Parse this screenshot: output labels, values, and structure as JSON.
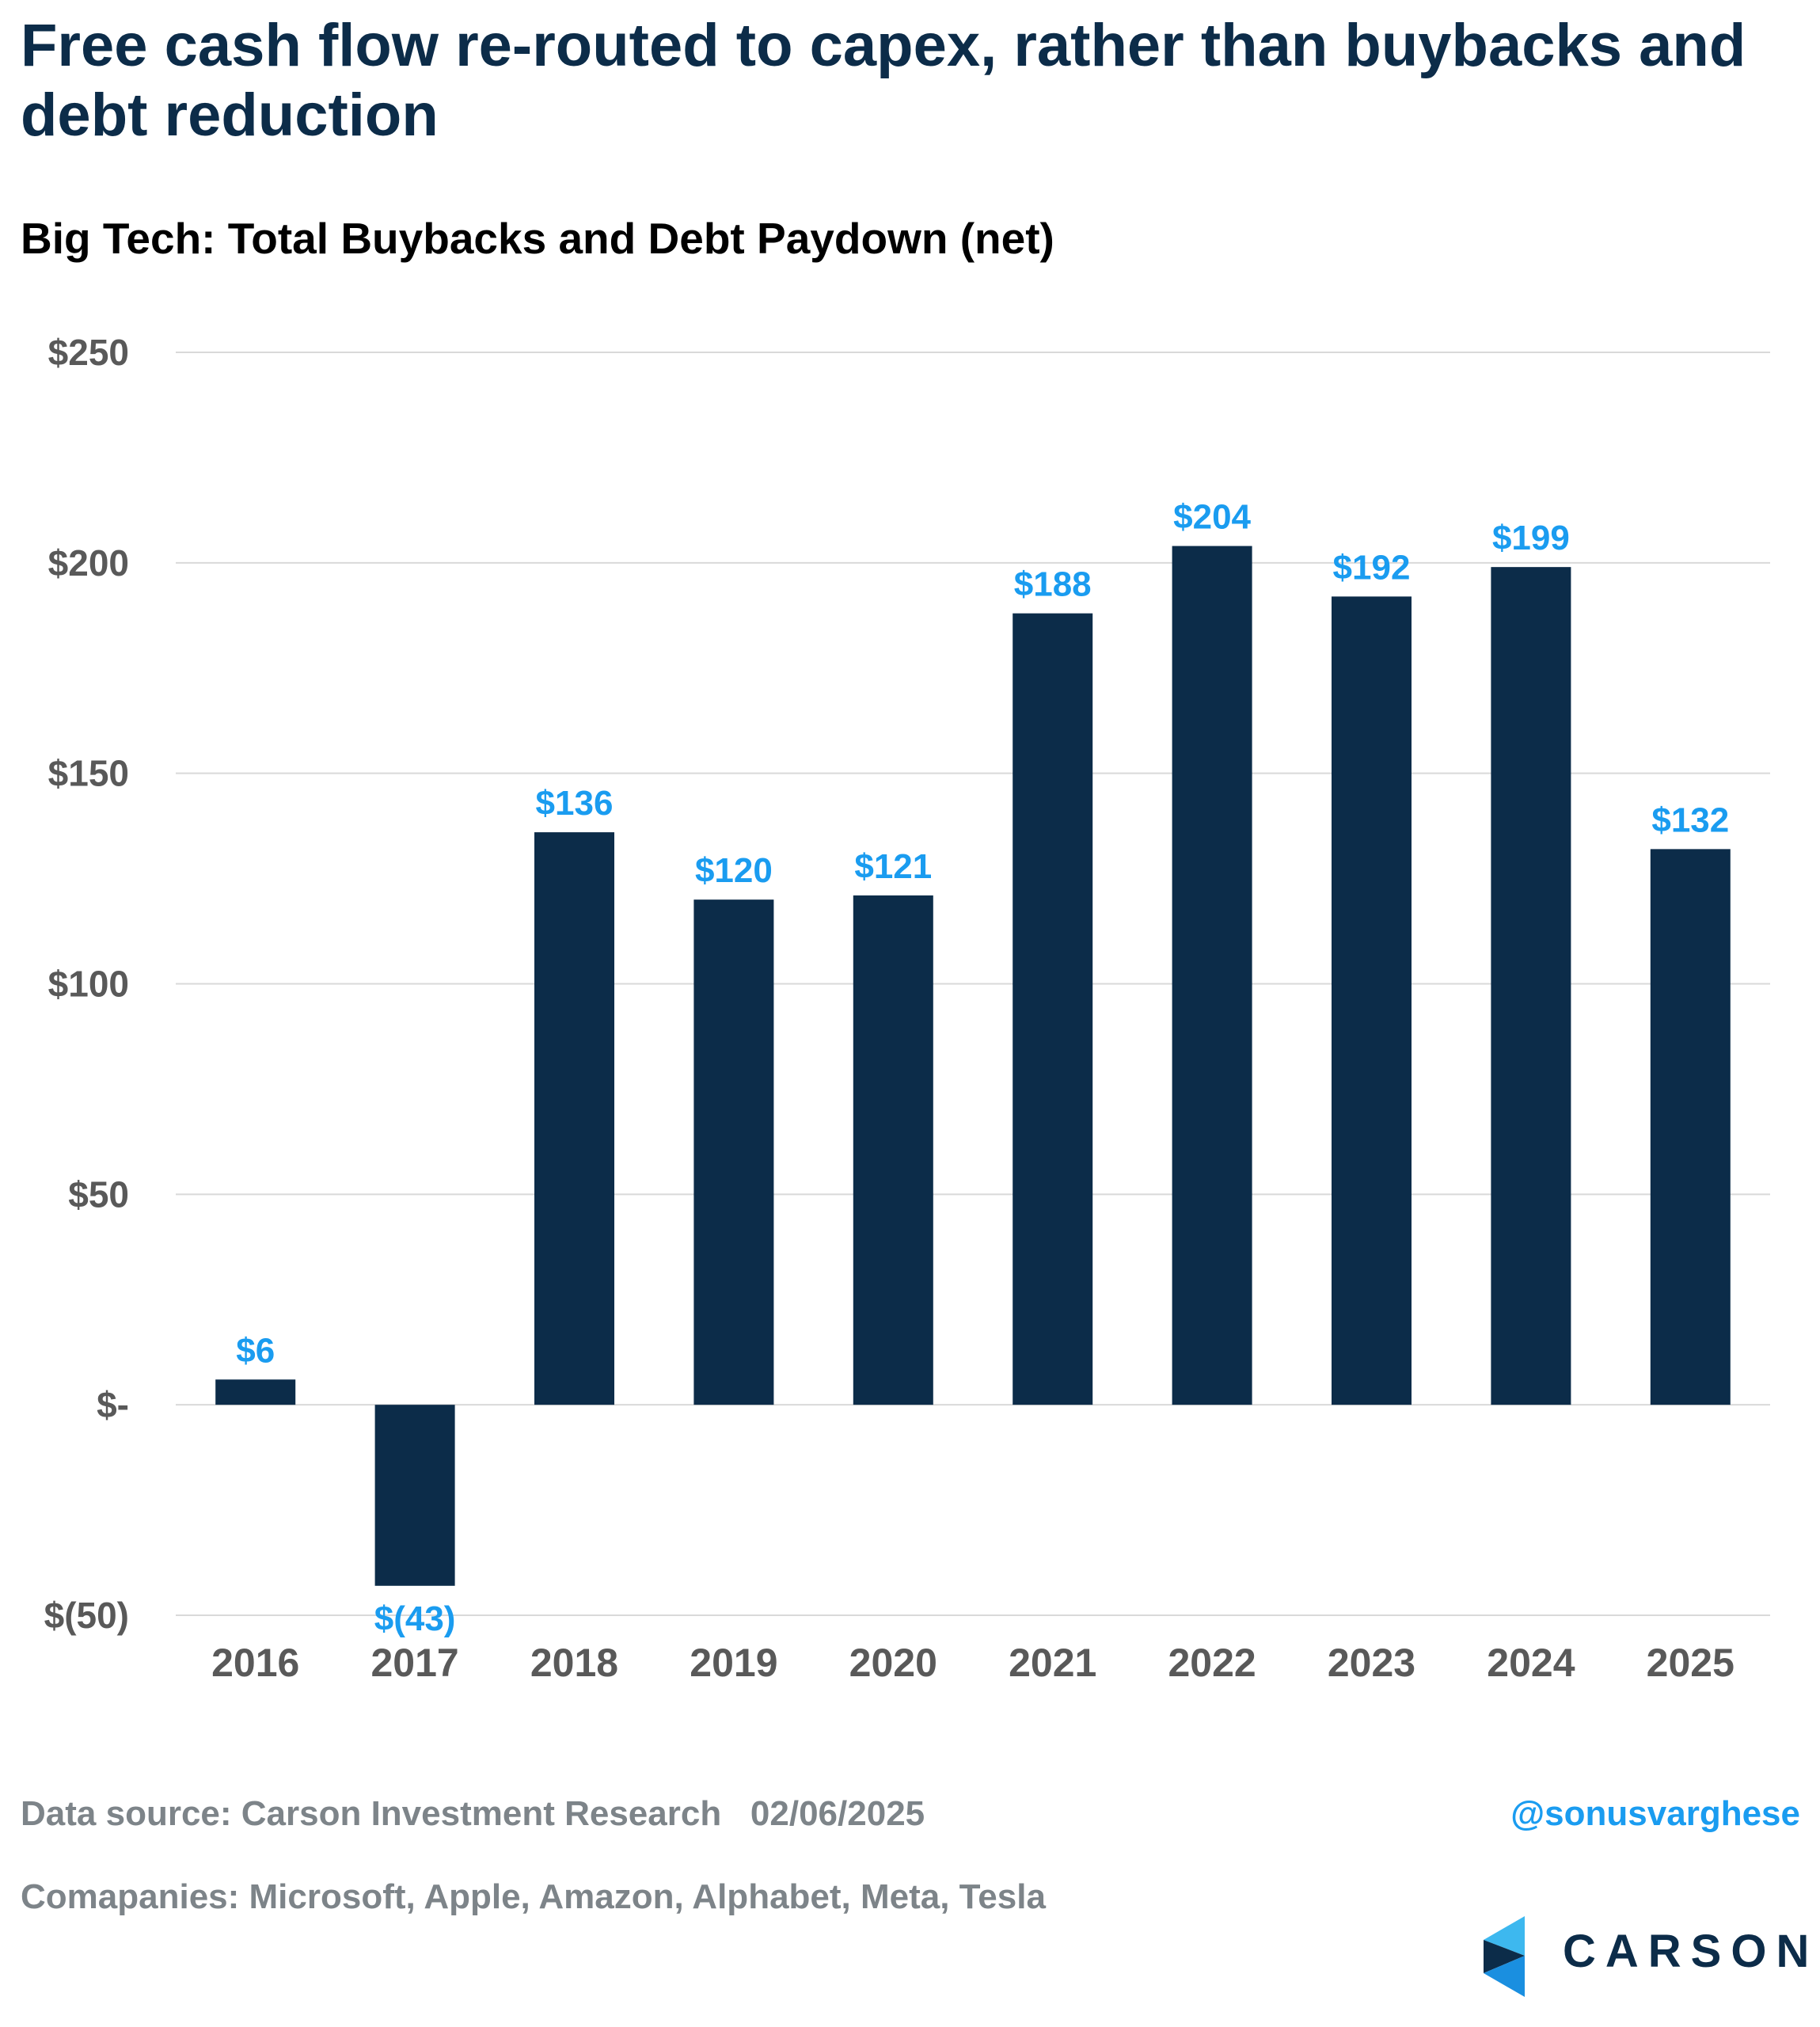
{
  "headline": "Free cash flow re-routed to capex, rather than buybacks and debt reduction",
  "footer": {
    "source": "Data source: Carson Investment Research",
    "date": "02/06/2025",
    "companies": "Comapanies: Microsoft, Apple, Amazon, Alphabet, Meta, Tesla",
    "handle": "@sonusvarghese",
    "brand": "CARSON"
  },
  "colors": {
    "bar": "#0c2c49",
    "data_label": "#1a9cf0",
    "axis_text": "#595959",
    "grid": "#d9d9d9"
  },
  "chart_data": {
    "type": "bar",
    "title": "Big Tech: Total Buybacks and Debt Paydown (net)",
    "xlabel": "",
    "ylabel": "",
    "categories": [
      "2016",
      "2017",
      "2018",
      "2019",
      "2020",
      "2021",
      "2022",
      "2023",
      "2024",
      "2025"
    ],
    "values": [
      6,
      -43,
      136,
      120,
      121,
      188,
      204,
      192,
      199,
      132
    ],
    "data_labels": [
      "$6",
      "$(43)",
      "$136",
      "$120",
      "$121",
      "$188",
      "$204",
      "$192",
      "$199",
      "$132"
    ],
    "ylim": [
      -50,
      250
    ],
    "yticks": [
      250,
      200,
      150,
      100,
      50,
      0,
      -50
    ],
    "ytick_labels": [
      "$250",
      "$200",
      "$150",
      "$100",
      "$50",
      "$-",
      "$(50)"
    ],
    "grid": true,
    "legend": "none"
  }
}
